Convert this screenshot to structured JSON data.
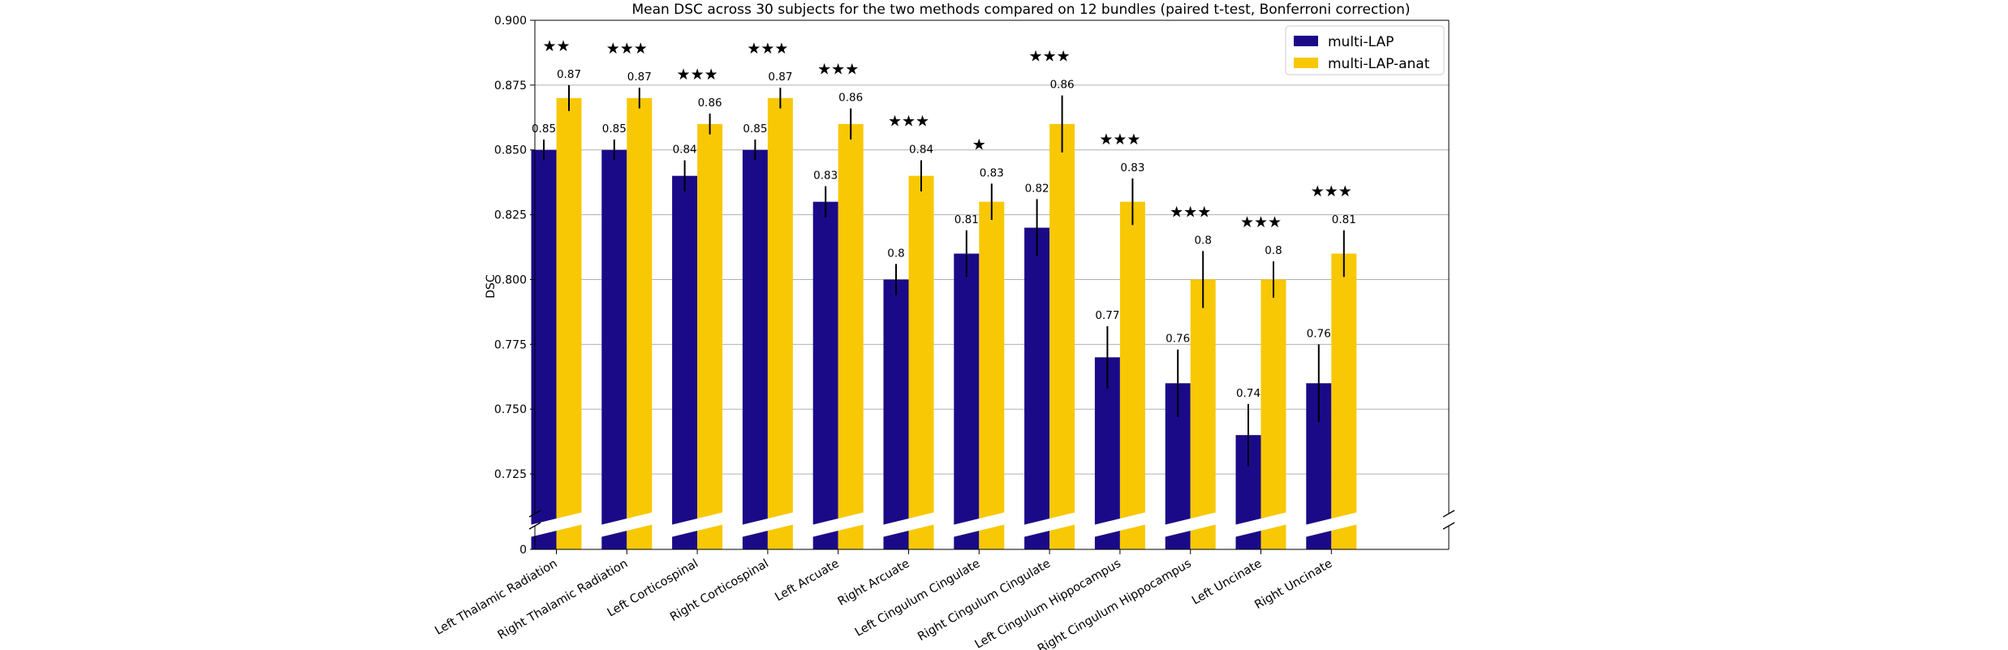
{
  "chart_data": {
    "type": "bar",
    "title": "Mean DSC across 30 subjects for the two methods compared on 12 bundles (paired t-test, Bonferroni correction)",
    "xlabel": "",
    "ylabel": "DSC",
    "ylim": [
      0.71,
      0.9
    ],
    "yticks": [
      "0.725",
      "0.750",
      "0.775",
      "0.800",
      "0.825",
      "0.850",
      "0.875",
      "0.900"
    ],
    "ybreak_label": "0",
    "grid": "horizontal",
    "legend_position": "top-right",
    "categories": [
      "Left Thalamic Radiation",
      "Right Thalamic Radiation",
      "Left Corticospinal",
      "Right Corticospinal",
      "Left Arcuate",
      "Right Arcuate",
      "Left Cingulum Cingulate",
      "Right Cingulum Cingulate",
      "Left Cingulum Hippocampus",
      "Right Cingulum Hippocampus",
      "Left Uncinate",
      "Right Uncinate"
    ],
    "series": [
      {
        "name": "multi-LAP",
        "color": "#1a0a88",
        "values": [
          0.85,
          0.85,
          0.84,
          0.85,
          0.83,
          0.8,
          0.81,
          0.82,
          0.77,
          0.76,
          0.74,
          0.76
        ],
        "errors": [
          0.004,
          0.004,
          0.006,
          0.004,
          0.006,
          0.006,
          0.009,
          0.011,
          0.012,
          0.013,
          0.012,
          0.015
        ],
        "labels": [
          "0.85",
          "0.85",
          "0.84",
          "0.85",
          "0.83",
          "0.8",
          "0.81",
          "0.82",
          "0.77",
          "0.76",
          "0.74",
          "0.76"
        ]
      },
      {
        "name": "multi-LAP-anat",
        "color": "#f8c805",
        "values": [
          0.87,
          0.87,
          0.86,
          0.87,
          0.86,
          0.84,
          0.83,
          0.86,
          0.83,
          0.8,
          0.8,
          0.81
        ],
        "errors": [
          0.005,
          0.004,
          0.004,
          0.004,
          0.006,
          0.006,
          0.007,
          0.011,
          0.009,
          0.011,
          0.007,
          0.009
        ],
        "labels": [
          "0.87",
          "0.87",
          "0.86",
          "0.87",
          "0.86",
          "0.84",
          "0.83",
          "0.86",
          "0.83",
          "0.8",
          "0.8",
          "0.81"
        ]
      }
    ],
    "significance": [
      "★★",
      "★★★",
      "★★★",
      "★★★",
      "★★★",
      "★★★",
      "★",
      "★★★",
      "★★★",
      "★★★",
      "★★★",
      "★★★"
    ]
  }
}
